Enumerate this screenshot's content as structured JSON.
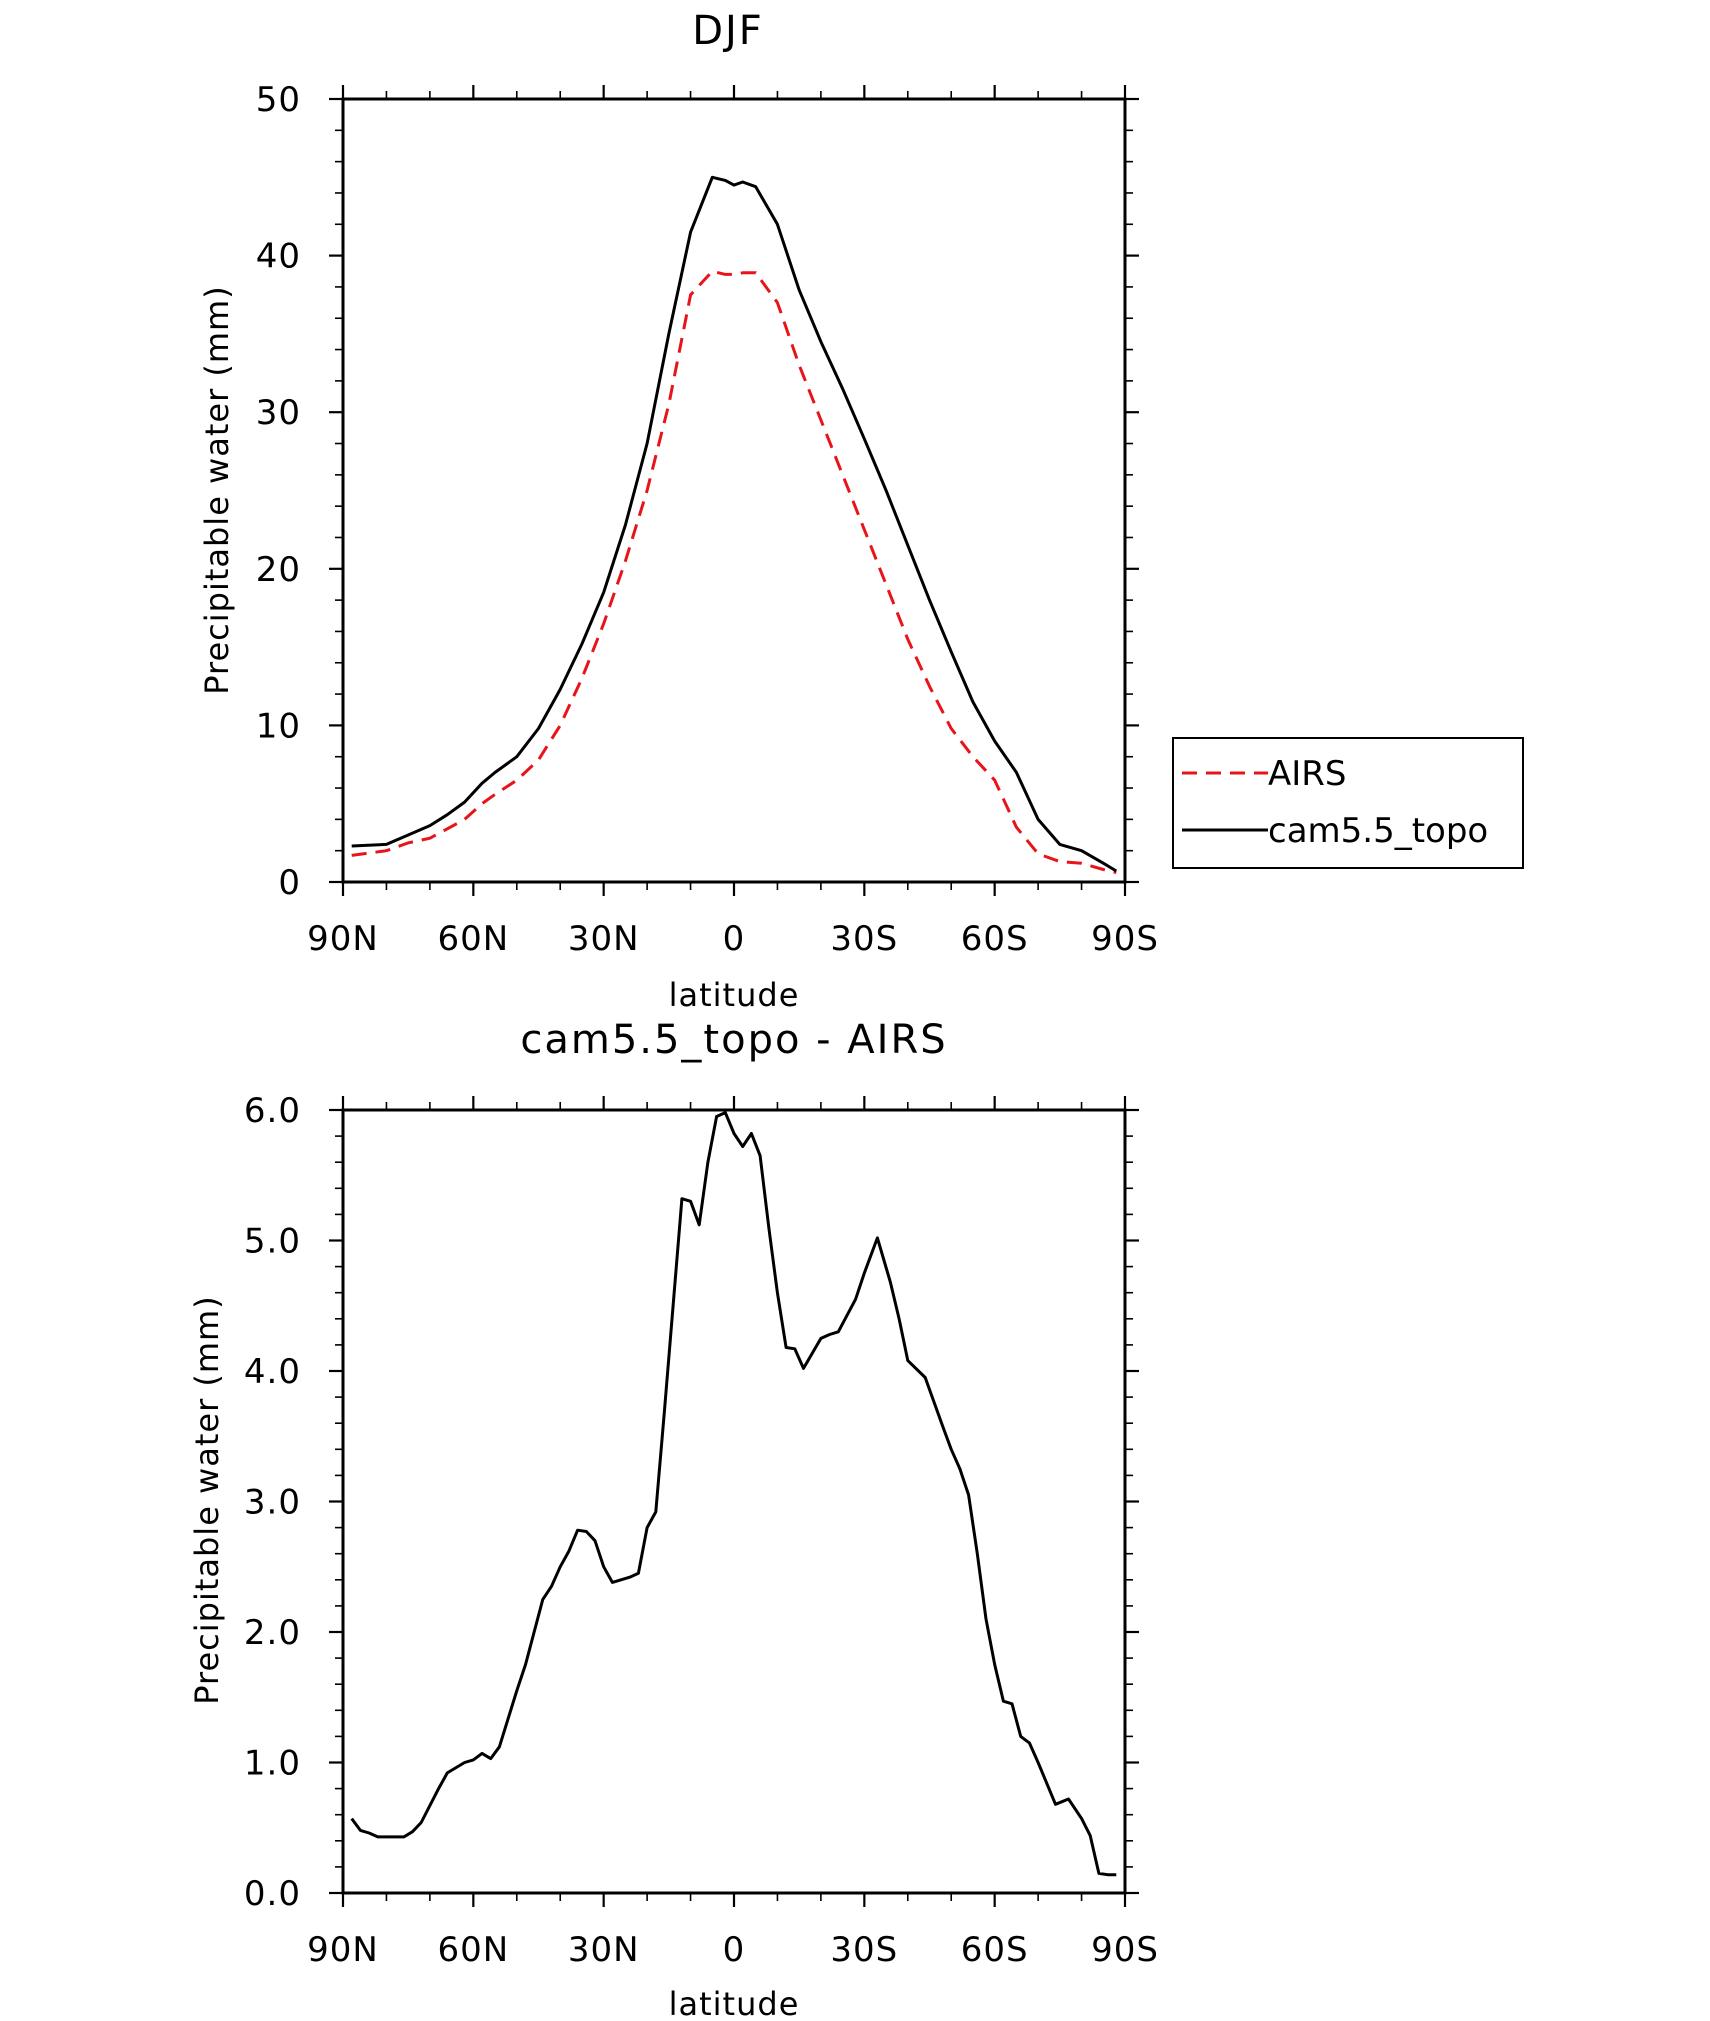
{
  "chart_data": [
    {
      "type": "line",
      "title": "DJF",
      "xlabel": "latitude",
      "ylabel": "Precipitable water (mm)",
      "ylim": [
        0,
        50
      ],
      "xlim": [
        90,
        -90
      ],
      "x_ticks": [
        90,
        60,
        30,
        0,
        -30,
        -60,
        -90
      ],
      "x_tick_labels": [
        "90N",
        "60N",
        "30N",
        "0",
        "30S",
        "60S",
        "90S"
      ],
      "y_ticks": [
        0,
        10,
        20,
        30,
        40,
        50
      ],
      "y_tick_labels": [
        "0",
        "10",
        "20",
        "30",
        "40",
        "50"
      ],
      "legend": {
        "placement": "right",
        "entries": [
          "AIRS",
          "cam5.5_topo"
        ]
      },
      "series": [
        {
          "name": "AIRS",
          "color": "#e8141a",
          "dash": "dashed",
          "x": [
            88,
            80,
            75,
            70,
            66,
            62,
            58,
            55,
            50,
            45,
            40,
            35,
            30,
            25,
            20,
            15,
            10,
            5,
            2,
            0,
            -2,
            -5,
            -10,
            -15,
            -20,
            -25,
            -30,
            -35,
            -40,
            -45,
            -50,
            -55,
            -60,
            -65,
            -70,
            -75,
            -80,
            -85,
            -88
          ],
          "y": [
            1.7,
            2.0,
            2.5,
            2.8,
            3.4,
            4.0,
            5.0,
            5.6,
            6.5,
            7.8,
            10.0,
            13.0,
            16.5,
            20.5,
            25.0,
            30.5,
            37.5,
            39.0,
            38.8,
            38.8,
            38.9,
            38.9,
            37.0,
            33.0,
            29.5,
            26.0,
            22.5,
            19.0,
            15.5,
            12.5,
            9.8,
            8.0,
            6.5,
            3.5,
            1.8,
            1.3,
            1.2,
            0.8,
            0.6
          ]
        },
        {
          "name": "cam5.5_topo",
          "color": "#000000",
          "dash": "solid",
          "x": [
            88,
            80,
            75,
            70,
            66,
            62,
            58,
            55,
            50,
            45,
            40,
            35,
            30,
            25,
            20,
            15,
            10,
            5,
            2,
            0,
            -2,
            -5,
            -10,
            -15,
            -20,
            -25,
            -30,
            -35,
            -40,
            -45,
            -50,
            -55,
            -60,
            -65,
            -70,
            -75,
            -80,
            -85,
            -88
          ],
          "y": [
            2.3,
            2.4,
            3.0,
            3.6,
            4.3,
            5.1,
            6.3,
            7.0,
            8.0,
            9.8,
            12.3,
            15.2,
            18.5,
            22.8,
            28.0,
            35.0,
            41.5,
            45.0,
            44.8,
            44.5,
            44.7,
            44.4,
            42.0,
            37.8,
            34.5,
            31.5,
            28.3,
            25.0,
            21.5,
            18.0,
            14.7,
            11.5,
            9.0,
            7.0,
            4.0,
            2.4,
            2.0,
            1.2,
            0.7
          ]
        }
      ]
    },
    {
      "type": "line",
      "title": "cam5.5_topo - AIRS",
      "xlabel": "latitude",
      "ylabel": "Precipitable water (mm)",
      "ylim": [
        0,
        6
      ],
      "xlim": [
        90,
        -90
      ],
      "x_ticks": [
        90,
        60,
        30,
        0,
        -30,
        -60,
        -90
      ],
      "x_tick_labels": [
        "90N",
        "60N",
        "30N",
        "0",
        "30S",
        "60S",
        "90S"
      ],
      "y_ticks": [
        0,
        1,
        2,
        3,
        4,
        5,
        6
      ],
      "y_tick_labels": [
        "0.0",
        "1.0",
        "2.0",
        "3.0",
        "4.0",
        "5.0",
        "6.0"
      ],
      "series": [
        {
          "color": "#000000",
          "dash": "solid",
          "x": [
            88,
            86,
            84,
            82,
            78,
            76,
            74,
            72,
            68,
            66,
            62,
            60,
            58,
            56,
            54,
            50,
            48,
            44,
            42,
            40,
            38,
            36,
            34,
            32,
            30,
            28,
            24,
            22,
            20,
            18,
            16,
            12,
            10,
            8,
            6,
            4,
            2,
            0,
            -2,
            -4,
            -6,
            -8,
            -10,
            -12,
            -14,
            -16,
            -20,
            -22,
            -24,
            -28,
            -30,
            -33,
            -36,
            -38,
            -40,
            -44,
            -48,
            -50,
            -52,
            -54,
            -56,
            -58,
            -60,
            -62,
            -64,
            -66,
            -68,
            -70,
            -74,
            -77,
            -80,
            -82,
            -84,
            -86,
            -88
          ],
          "y": [
            0.57,
            0.48,
            0.46,
            0.43,
            0.43,
            0.43,
            0.47,
            0.54,
            0.8,
            0.92,
            1.0,
            1.02,
            1.07,
            1.03,
            1.12,
            1.55,
            1.75,
            2.25,
            2.35,
            2.5,
            2.62,
            2.78,
            2.77,
            2.7,
            2.5,
            2.38,
            2.42,
            2.45,
            2.8,
            2.92,
            3.7,
            5.32,
            5.3,
            5.12,
            5.6,
            5.95,
            5.98,
            5.82,
            5.72,
            5.82,
            5.65,
            5.1,
            4.6,
            4.18,
            4.17,
            4.02,
            4.25,
            4.28,
            4.3,
            4.55,
            4.75,
            5.02,
            4.68,
            4.4,
            4.08,
            3.95,
            3.58,
            3.4,
            3.25,
            3.05,
            2.6,
            2.1,
            1.75,
            1.47,
            1.45,
            1.2,
            1.15,
            1.0,
            0.68,
            0.72,
            0.57,
            0.44,
            0.15,
            0.14,
            0.14
          ]
        }
      ]
    }
  ]
}
